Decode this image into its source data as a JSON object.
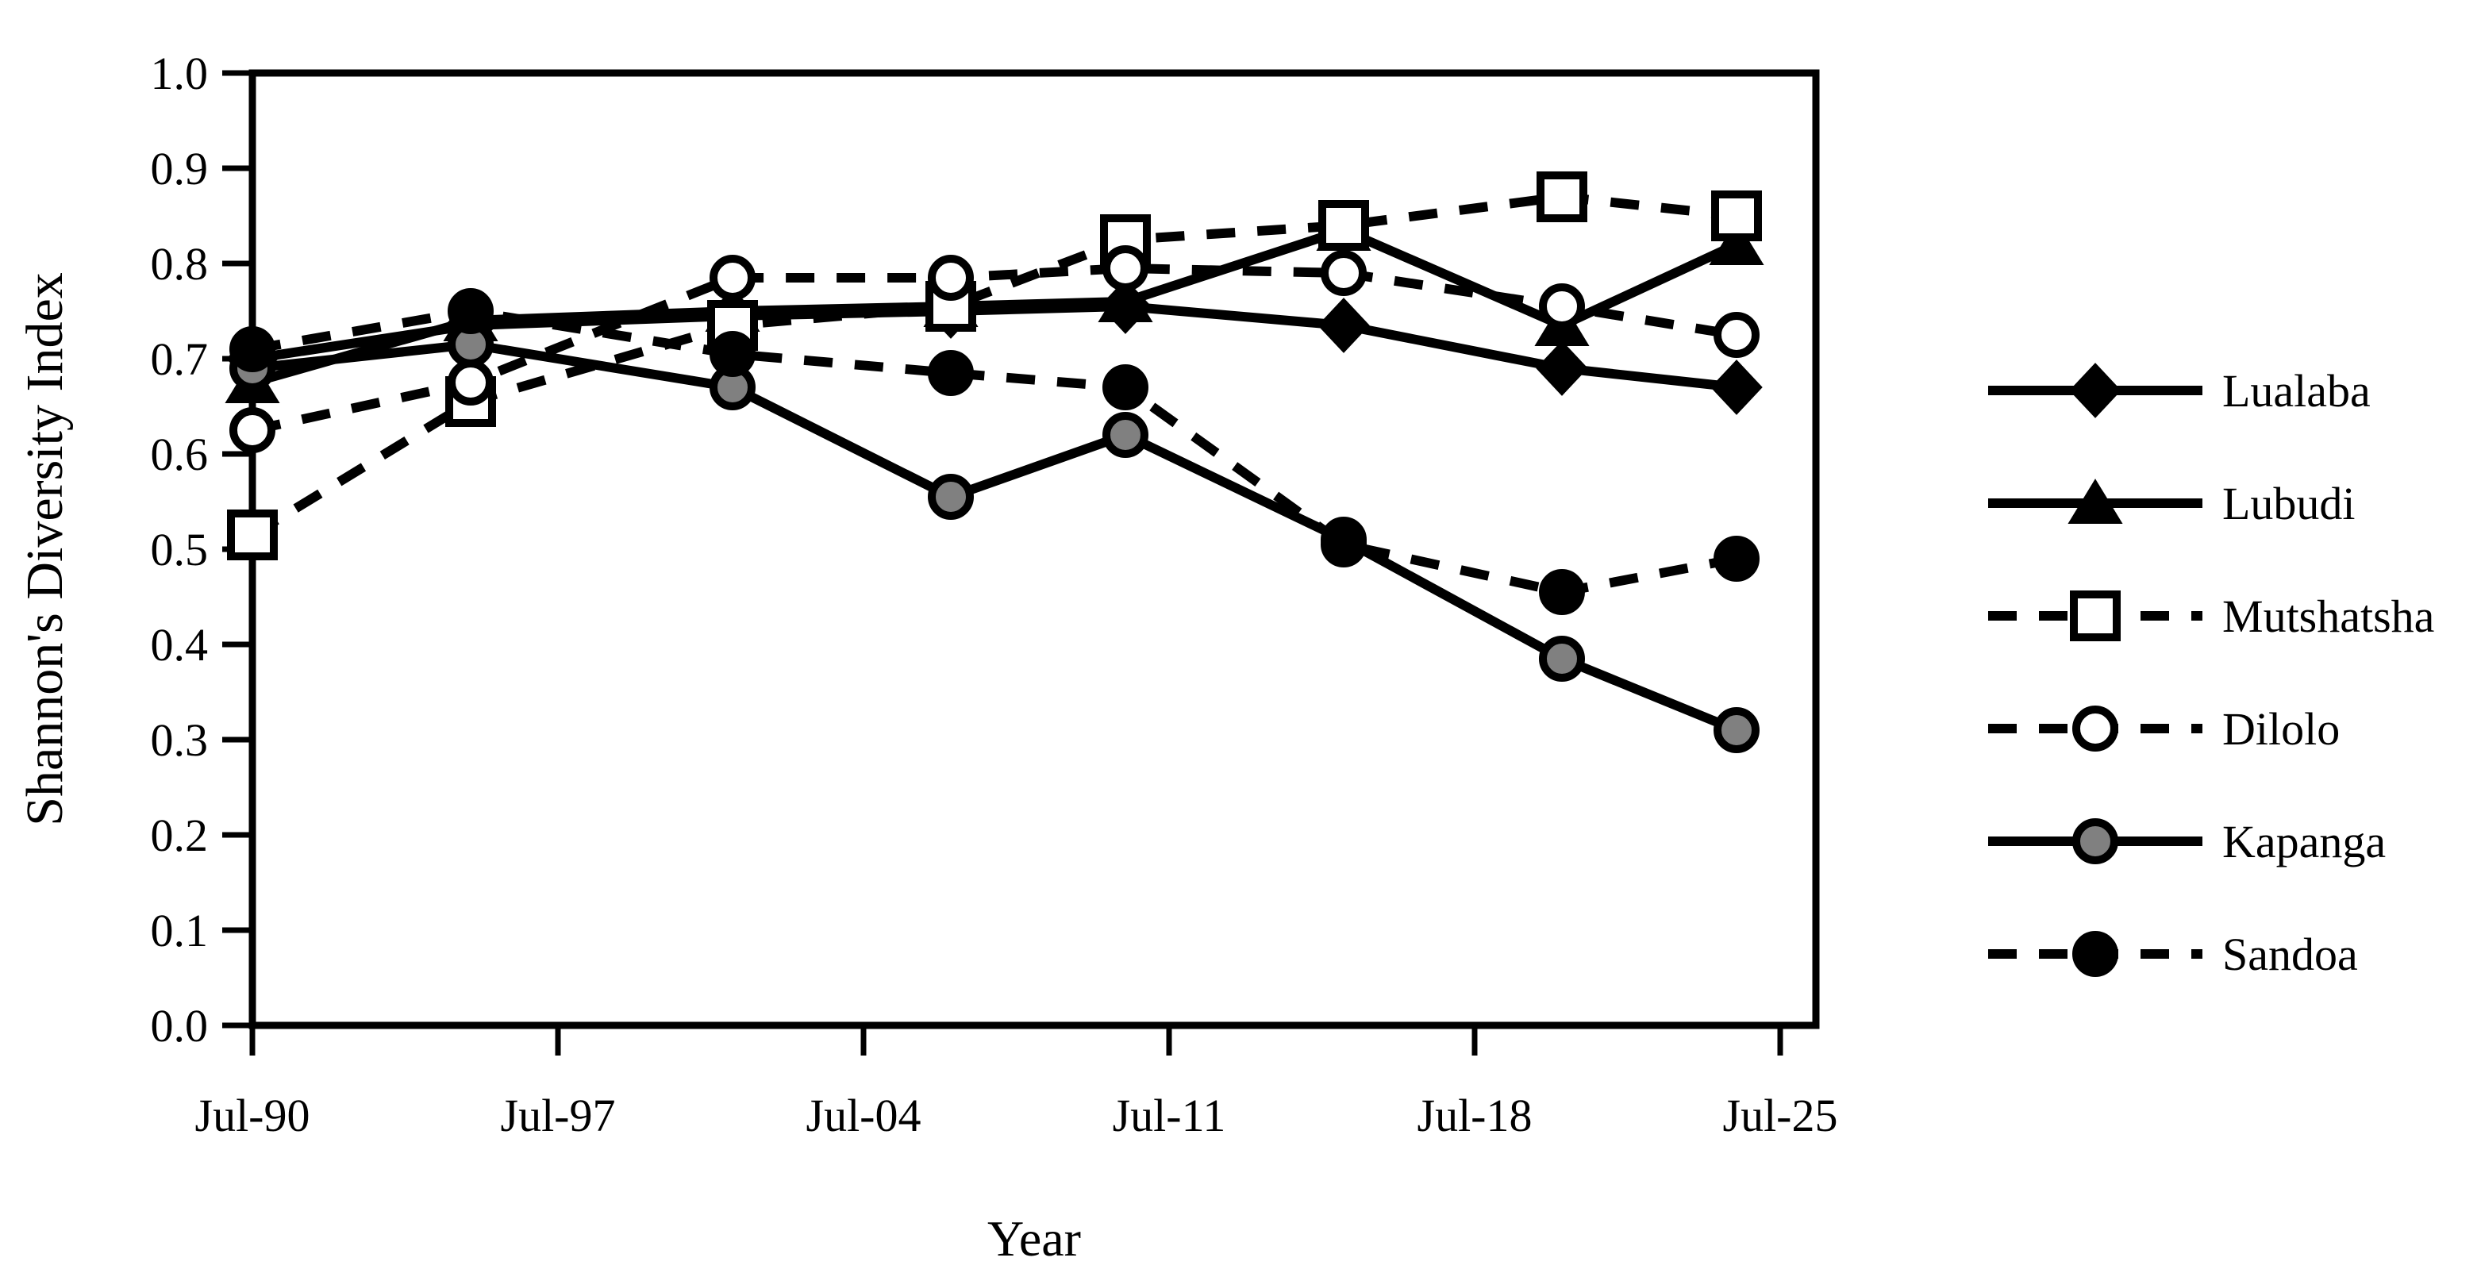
{
  "chart_data": {
    "type": "line",
    "title": "",
    "xlabel": "Year",
    "ylabel": "Shannon's Diversity Index",
    "x_tick_labels": [
      "Jul-90",
      "Jul-97",
      "Jul-04",
      "Jul-11",
      "Jul-18",
      "Jul-25"
    ],
    "x_tick_years": [
      1990,
      1997,
      2004,
      2011,
      2018,
      2025
    ],
    "y_tick_labels": [
      "1.0",
      "0.9",
      "0.8",
      "0.7",
      "0.6",
      "0.5",
      "0.4",
      "0.3",
      "0.2",
      "0.1",
      "0.0"
    ],
    "y_tick_values": [
      1.0,
      0.9,
      0.8,
      0.7,
      0.6,
      0.5,
      0.4,
      0.3,
      0.2,
      0.1,
      0.0
    ],
    "ylim": [
      0.0,
      1.0
    ],
    "xlim_years": [
      1990,
      2025.8
    ],
    "grid": false,
    "legend_position": "right",
    "x_years": [
      1990,
      1995,
      2001,
      2006,
      2010,
      2015,
      2020,
      2024
    ],
    "series": [
      {
        "name": "Lualaba",
        "line": "solid",
        "marker": "diamond",
        "marker_fill": "#000000",
        "values": [
          0.7,
          0.735,
          0.745,
          0.75,
          0.755,
          0.735,
          0.69,
          0.67
        ]
      },
      {
        "name": "Lubudi",
        "line": "solid",
        "marker": "triangle",
        "marker_fill": "#000000",
        "values": [
          0.675,
          0.74,
          0.75,
          0.755,
          0.76,
          0.835,
          0.735,
          0.82
        ]
      },
      {
        "name": "Mutshatsha",
        "line": "dashed",
        "marker": "square",
        "marker_fill": "#ffffff",
        "values": [
          0.515,
          0.655,
          0.735,
          0.755,
          0.825,
          0.84,
          0.87,
          0.85
        ]
      },
      {
        "name": "Dilolo",
        "line": "dashed",
        "marker": "circle",
        "marker_fill": "#ffffff",
        "values": [
          0.625,
          0.675,
          0.785,
          0.785,
          0.795,
          0.79,
          0.755,
          0.725
        ]
      },
      {
        "name": "Kapanga",
        "line": "solid",
        "marker": "circle",
        "marker_fill": "#808080",
        "values": [
          0.69,
          0.715,
          0.67,
          0.555,
          0.62,
          0.51,
          0.385,
          0.31
        ]
      },
      {
        "name": "Sandoa",
        "line": "dashed",
        "marker": "circle",
        "marker_fill": "#000000",
        "values": [
          0.71,
          0.75,
          0.705,
          0.685,
          0.67,
          0.505,
          0.455,
          0.49
        ]
      }
    ],
    "colors": {
      "foreground": "#000000",
      "background": "#ffffff",
      "gray_marker": "#808080"
    }
  }
}
